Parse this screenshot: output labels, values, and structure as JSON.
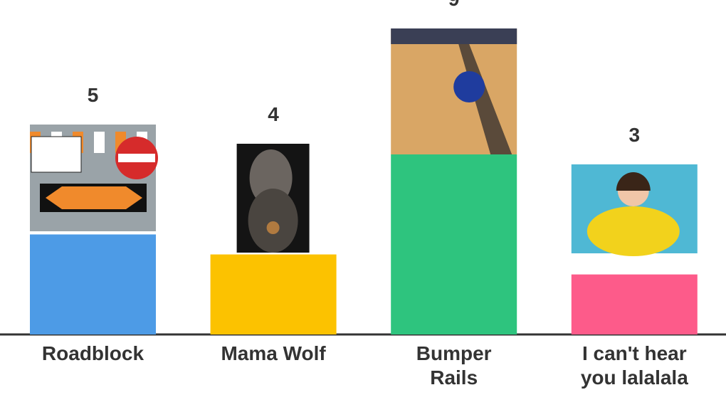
{
  "chart_data": {
    "type": "bar",
    "categories": [
      "Roadblock",
      "Mama Wolf",
      "Bumper Rails",
      "I can't hear you lalalala"
    ],
    "values": [
      5,
      4,
      9,
      3
    ],
    "colors": [
      "#4d9be6",
      "#fcc200",
      "#2ec47e",
      "#fd5b8a"
    ]
  }
}
